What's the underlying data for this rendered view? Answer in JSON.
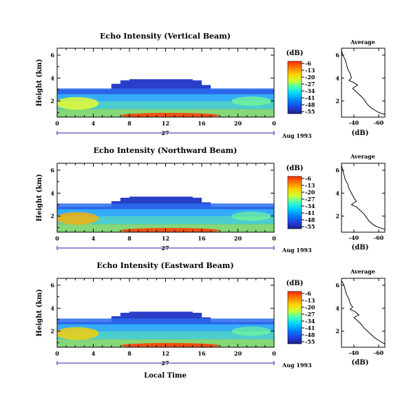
{
  "figure": {
    "xlabel": "Local Time",
    "date_day": "27",
    "date_month_year": "Aug 1993"
  },
  "chart_data": [
    {
      "type": "heatmap",
      "title": "Echo Intensity (Vertical Beam)",
      "ylabel": "Height (km)",
      "xlabel": "Local Time",
      "x_ticks": [
        "0",
        "4",
        "8",
        "12",
        "16",
        "20",
        "0"
      ],
      "xlim": [
        0,
        24
      ],
      "y_ticks": [
        "2",
        "4",
        "6"
      ],
      "ylim": [
        0.6,
        6.6
      ],
      "colorbar": {
        "label": "(dB)",
        "ticks": [
          "-6",
          "-13",
          "-20",
          "-27",
          "-34",
          "-41",
          "-48",
          "-55"
        ],
        "range": [
          -55,
          -6
        ]
      },
      "echo_top_km": [
        3.0,
        3.0,
        3.0,
        3.0,
        3.0,
        3.0,
        3.5,
        3.8,
        3.9,
        3.9,
        3.9,
        3.9,
        3.9,
        3.9,
        3.9,
        3.8,
        3.4,
        3.0,
        3.0,
        3.0,
        3.0,
        3.0,
        3.0,
        3.0
      ],
      "profile": {
        "title": "Average",
        "xlabel": "(dB)",
        "x_ticks": [
          "-40",
          "-60"
        ],
        "xlim": [
          -30,
          -65
        ],
        "y_ticks": [
          "2",
          "4",
          "6"
        ],
        "points": [
          [
            -30,
            6.4
          ],
          [
            -31,
            6.0
          ],
          [
            -33,
            5.6
          ],
          [
            -34,
            5.2
          ],
          [
            -35,
            4.8
          ],
          [
            -37,
            4.4
          ],
          [
            -38,
            4.0
          ],
          [
            -36,
            3.8
          ],
          [
            -40,
            3.6
          ],
          [
            -43,
            3.4
          ],
          [
            -39,
            3.1
          ],
          [
            -41,
            2.9
          ],
          [
            -44,
            2.6
          ],
          [
            -47,
            2.3
          ],
          [
            -49,
            2.0
          ],
          [
            -51,
            1.7
          ],
          [
            -54,
            1.4
          ],
          [
            -57,
            1.2
          ],
          [
            -60,
            1.0
          ],
          [
            -63,
            0.9
          ],
          [
            -65,
            0.85
          ]
        ]
      }
    },
    {
      "type": "heatmap",
      "title": "Echo Intensity (Northward Beam)",
      "ylabel": "Height (km)",
      "xlabel": "Local Time",
      "x_ticks": [
        "0",
        "4",
        "8",
        "12",
        "16",
        "20",
        "0"
      ],
      "xlim": [
        0,
        24
      ],
      "y_ticks": [
        "2",
        "4",
        "6"
      ],
      "ylim": [
        0.6,
        6.6
      ],
      "colorbar": {
        "label": "(dB)",
        "ticks": [
          "-6",
          "-13",
          "-20",
          "-27",
          "-34",
          "-41",
          "-48",
          "-55"
        ],
        "range": [
          -55,
          -6
        ]
      },
      "echo_top_km": [
        2.8,
        2.8,
        2.8,
        2.8,
        2.8,
        2.8,
        3.3,
        3.6,
        3.7,
        3.7,
        3.7,
        3.7,
        3.7,
        3.7,
        3.7,
        3.6,
        3.2,
        2.8,
        2.8,
        2.8,
        2.8,
        2.8,
        2.8,
        2.8
      ],
      "profile": {
        "title": "Average",
        "xlabel": "(dB)",
        "x_ticks": [
          "-40",
          "-60"
        ],
        "xlim": [
          -30,
          -65
        ],
        "y_ticks": [
          "2",
          "4",
          "6"
        ],
        "points": [
          [
            -30,
            6.4
          ],
          [
            -31,
            6.0
          ],
          [
            -32,
            5.6
          ],
          [
            -33,
            5.2
          ],
          [
            -35,
            4.8
          ],
          [
            -36,
            4.4
          ],
          [
            -38,
            4.0
          ],
          [
            -40,
            3.6
          ],
          [
            -42,
            3.3
          ],
          [
            -38,
            3.0
          ],
          [
            -42,
            2.8
          ],
          [
            -45,
            2.5
          ],
          [
            -48,
            2.2
          ],
          [
            -50,
            1.9
          ],
          [
            -52,
            1.6
          ],
          [
            -55,
            1.3
          ],
          [
            -58,
            1.1
          ],
          [
            -62,
            0.95
          ],
          [
            -65,
            0.85
          ]
        ]
      }
    },
    {
      "type": "heatmap",
      "title": "Echo Intensity (Eastward Beam)",
      "ylabel": "Height (km)",
      "xlabel": "Local Time",
      "x_ticks": [
        "0",
        "4",
        "8",
        "12",
        "16",
        "20",
        "0"
      ],
      "xlim": [
        0,
        24
      ],
      "y_ticks": [
        "2",
        "4",
        "6"
      ],
      "ylim": [
        0.6,
        6.6
      ],
      "colorbar": {
        "label": "(dB)",
        "ticks": [
          "-6",
          "-13",
          "-20",
          "-27",
          "-34",
          "-41",
          "-48",
          "-55"
        ],
        "range": [
          -55,
          -6
        ]
      },
      "echo_top_km": [
        2.8,
        2.8,
        2.8,
        2.8,
        2.8,
        2.8,
        3.3,
        3.6,
        3.7,
        3.7,
        3.7,
        3.7,
        3.7,
        3.7,
        3.7,
        3.6,
        3.2,
        2.8,
        2.8,
        2.8,
        2.8,
        2.8,
        2.8,
        2.8
      ],
      "profile": {
        "title": "Average",
        "xlabel": "(dB)",
        "x_ticks": [
          "-40",
          "-60"
        ],
        "xlim": [
          -30,
          -65
        ],
        "y_ticks": [
          "2",
          "4",
          "6"
        ],
        "points": [
          [
            -30,
            6.4
          ],
          [
            -32,
            6.0
          ],
          [
            -33,
            5.6
          ],
          [
            -34,
            5.2
          ],
          [
            -36,
            4.8
          ],
          [
            -37,
            4.4
          ],
          [
            -39,
            4.1
          ],
          [
            -37,
            3.9
          ],
          [
            -41,
            3.7
          ],
          [
            -44,
            3.4
          ],
          [
            -40,
            3.2
          ],
          [
            -43,
            2.9
          ],
          [
            -46,
            2.6
          ],
          [
            -48,
            2.3
          ],
          [
            -51,
            2.0
          ],
          [
            -54,
            1.7
          ],
          [
            -57,
            1.4
          ],
          [
            -60,
            1.2
          ],
          [
            -63,
            1.0
          ],
          [
            -65,
            0.9
          ]
        ]
      }
    }
  ],
  "colormap": [
    "#ff2a00",
    "#ff7a00",
    "#ffd400",
    "#d6ff29",
    "#8cff70",
    "#40ffbf",
    "#00e0ff",
    "#0090ff",
    "#2040e0",
    "#2020a0"
  ]
}
